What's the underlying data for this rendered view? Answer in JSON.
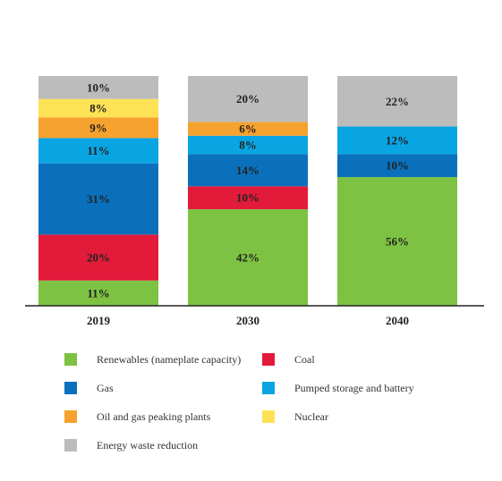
{
  "chart_data": {
    "type": "bar",
    "stacked": true,
    "normalized_percent": true,
    "categories": [
      "2019",
      "2030",
      "2040"
    ],
    "series": [
      {
        "name": "Renewables (nameplate capacity)",
        "color": "#7dc242",
        "values": [
          11,
          42,
          56
        ]
      },
      {
        "name": "Coal",
        "color": "#e31b3b",
        "values": [
          20,
          10,
          0
        ]
      },
      {
        "name": "Gas",
        "color": "#0a70bc",
        "values": [
          31,
          14,
          10
        ]
      },
      {
        "name": "Pumped storage and battery",
        "color": "#09a5e3",
        "values": [
          11,
          8,
          12
        ]
      },
      {
        "name": "Oil and gas peaking plants",
        "color": "#f6a22f",
        "values": [
          9,
          6,
          0
        ]
      },
      {
        "name": "Nuclear",
        "color": "#fde256",
        "values": [
          8,
          0,
          0
        ]
      },
      {
        "name": "Energy waste reduction",
        "color": "#bcbcbc",
        "values": [
          10,
          20,
          22
        ]
      }
    ],
    "value_suffix": "%",
    "legend_position": "bottom",
    "grid": false
  }
}
